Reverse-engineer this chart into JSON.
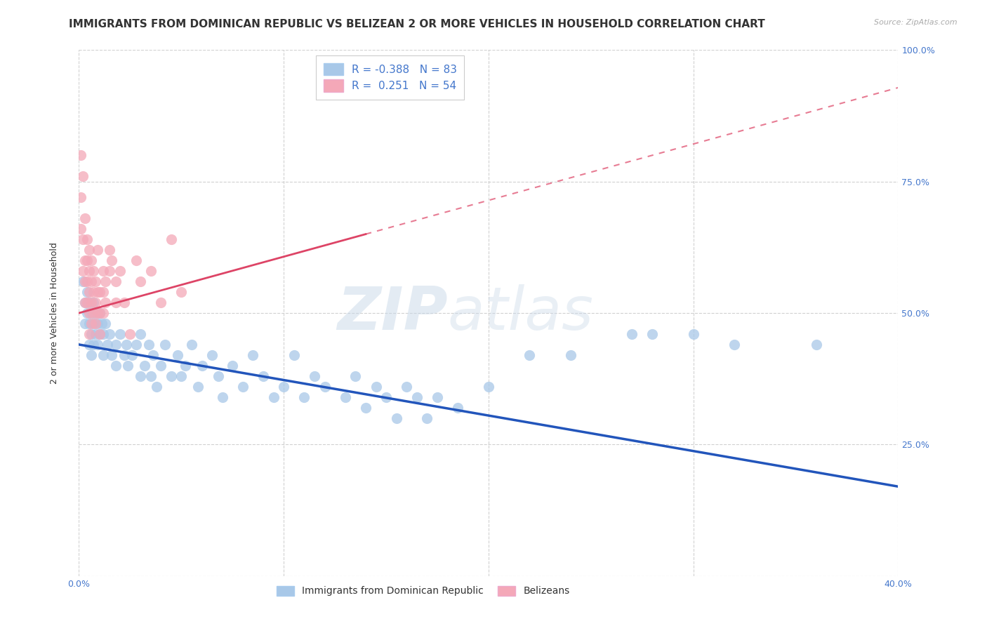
{
  "title": "IMMIGRANTS FROM DOMINICAN REPUBLIC VS BELIZEAN 2 OR MORE VEHICLES IN HOUSEHOLD CORRELATION CHART",
  "source": "Source: ZipAtlas.com",
  "ylabel": "2 or more Vehicles in Household",
  "xlim": [
    0.0,
    0.4
  ],
  "ylim": [
    0.0,
    1.0
  ],
  "blue_R": -0.388,
  "blue_N": 83,
  "pink_R": 0.251,
  "pink_N": 54,
  "blue_color": "#a8c8e8",
  "pink_color": "#f4a8b8",
  "blue_line_color": "#2255bb",
  "pink_line_color": "#dd4466",
  "blue_scatter": [
    [
      0.002,
      0.56
    ],
    [
      0.003,
      0.52
    ],
    [
      0.003,
      0.48
    ],
    [
      0.004,
      0.54
    ],
    [
      0.004,
      0.5
    ],
    [
      0.005,
      0.52
    ],
    [
      0.005,
      0.48
    ],
    [
      0.005,
      0.44
    ],
    [
      0.006,
      0.5
    ],
    [
      0.006,
      0.46
    ],
    [
      0.006,
      0.42
    ],
    [
      0.007,
      0.52
    ],
    [
      0.007,
      0.48
    ],
    [
      0.007,
      0.44
    ],
    [
      0.008,
      0.5
    ],
    [
      0.008,
      0.46
    ],
    [
      0.009,
      0.48
    ],
    [
      0.009,
      0.44
    ],
    [
      0.01,
      0.5
    ],
    [
      0.01,
      0.46
    ],
    [
      0.011,
      0.48
    ],
    [
      0.012,
      0.46
    ],
    [
      0.012,
      0.42
    ],
    [
      0.013,
      0.48
    ],
    [
      0.014,
      0.44
    ],
    [
      0.015,
      0.46
    ],
    [
      0.016,
      0.42
    ],
    [
      0.018,
      0.44
    ],
    [
      0.018,
      0.4
    ],
    [
      0.02,
      0.46
    ],
    [
      0.022,
      0.42
    ],
    [
      0.023,
      0.44
    ],
    [
      0.024,
      0.4
    ],
    [
      0.026,
      0.42
    ],
    [
      0.028,
      0.44
    ],
    [
      0.03,
      0.38
    ],
    [
      0.03,
      0.46
    ],
    [
      0.032,
      0.4
    ],
    [
      0.034,
      0.44
    ],
    [
      0.035,
      0.38
    ],
    [
      0.036,
      0.42
    ],
    [
      0.038,
      0.36
    ],
    [
      0.04,
      0.4
    ],
    [
      0.042,
      0.44
    ],
    [
      0.045,
      0.38
    ],
    [
      0.048,
      0.42
    ],
    [
      0.05,
      0.38
    ],
    [
      0.052,
      0.4
    ],
    [
      0.055,
      0.44
    ],
    [
      0.058,
      0.36
    ],
    [
      0.06,
      0.4
    ],
    [
      0.065,
      0.42
    ],
    [
      0.068,
      0.38
    ],
    [
      0.07,
      0.34
    ],
    [
      0.075,
      0.4
    ],
    [
      0.08,
      0.36
    ],
    [
      0.085,
      0.42
    ],
    [
      0.09,
      0.38
    ],
    [
      0.095,
      0.34
    ],
    [
      0.1,
      0.36
    ],
    [
      0.105,
      0.42
    ],
    [
      0.11,
      0.34
    ],
    [
      0.115,
      0.38
    ],
    [
      0.12,
      0.36
    ],
    [
      0.13,
      0.34
    ],
    [
      0.135,
      0.38
    ],
    [
      0.14,
      0.32
    ],
    [
      0.145,
      0.36
    ],
    [
      0.15,
      0.34
    ],
    [
      0.155,
      0.3
    ],
    [
      0.16,
      0.36
    ],
    [
      0.165,
      0.34
    ],
    [
      0.17,
      0.3
    ],
    [
      0.175,
      0.34
    ],
    [
      0.185,
      0.32
    ],
    [
      0.2,
      0.36
    ],
    [
      0.22,
      0.42
    ],
    [
      0.24,
      0.42
    ],
    [
      0.27,
      0.46
    ],
    [
      0.28,
      0.46
    ],
    [
      0.3,
      0.46
    ],
    [
      0.32,
      0.44
    ],
    [
      0.36,
      0.44
    ]
  ],
  "pink_scatter": [
    [
      0.001,
      0.8
    ],
    [
      0.001,
      0.72
    ],
    [
      0.001,
      0.66
    ],
    [
      0.002,
      0.76
    ],
    [
      0.002,
      0.64
    ],
    [
      0.002,
      0.58
    ],
    [
      0.003,
      0.68
    ],
    [
      0.003,
      0.6
    ],
    [
      0.003,
      0.56
    ],
    [
      0.003,
      0.52
    ],
    [
      0.004,
      0.64
    ],
    [
      0.004,
      0.6
    ],
    [
      0.004,
      0.56
    ],
    [
      0.004,
      0.52
    ],
    [
      0.005,
      0.62
    ],
    [
      0.005,
      0.58
    ],
    [
      0.005,
      0.54
    ],
    [
      0.005,
      0.5
    ],
    [
      0.005,
      0.46
    ],
    [
      0.006,
      0.6
    ],
    [
      0.006,
      0.56
    ],
    [
      0.006,
      0.52
    ],
    [
      0.006,
      0.48
    ],
    [
      0.007,
      0.58
    ],
    [
      0.007,
      0.54
    ],
    [
      0.007,
      0.5
    ],
    [
      0.008,
      0.56
    ],
    [
      0.008,
      0.52
    ],
    [
      0.008,
      0.48
    ],
    [
      0.009,
      0.62
    ],
    [
      0.009,
      0.54
    ],
    [
      0.009,
      0.5
    ],
    [
      0.01,
      0.54
    ],
    [
      0.01,
      0.5
    ],
    [
      0.01,
      0.46
    ],
    [
      0.012,
      0.58
    ],
    [
      0.012,
      0.54
    ],
    [
      0.012,
      0.5
    ],
    [
      0.013,
      0.56
    ],
    [
      0.013,
      0.52
    ],
    [
      0.015,
      0.62
    ],
    [
      0.015,
      0.58
    ],
    [
      0.016,
      0.6
    ],
    [
      0.018,
      0.56
    ],
    [
      0.018,
      0.52
    ],
    [
      0.02,
      0.58
    ],
    [
      0.022,
      0.52
    ],
    [
      0.025,
      0.46
    ],
    [
      0.028,
      0.6
    ],
    [
      0.03,
      0.56
    ],
    [
      0.035,
      0.58
    ],
    [
      0.04,
      0.52
    ],
    [
      0.045,
      0.64
    ],
    [
      0.05,
      0.54
    ]
  ],
  "watermark_zip": "ZIP",
  "watermark_atlas": "atlas",
  "background_color": "#ffffff",
  "grid_color": "#cccccc",
  "title_fontsize": 11,
  "axis_fontsize": 9,
  "tick_fontsize": 9,
  "legend_fontsize": 11
}
